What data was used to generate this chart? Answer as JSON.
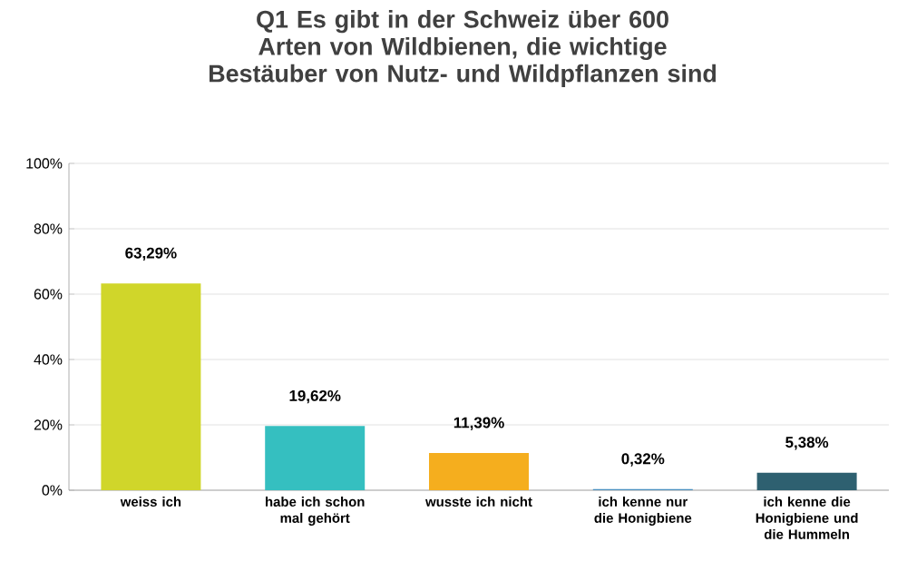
{
  "chart_data": {
    "type": "bar",
    "title": "Q1 Es gibt in der Schweiz über 600 Arten von Wildbienen, die wichtige Bestäuber von Nutz- und Wildpflanzen sind",
    "categories": [
      "weiss ich",
      "habe ich schon mal gehört",
      "wusste ich nicht",
      "ich kenne nur die Honigbiene",
      "ich kenne die Honigbiene und die Hummeln"
    ],
    "values": [
      63.29,
      19.62,
      11.39,
      0.32,
      5.38
    ],
    "value_labels": [
      "63,29%",
      "19,62%",
      "11,39%",
      "0,32%",
      "5,38%"
    ],
    "colors": [
      "#d0d62a",
      "#35bfc0",
      "#f5ae1e",
      "#4a90c0",
      "#2e6070"
    ],
    "ylim": [
      0,
      100
    ],
    "yticks": [
      {
        "value": 0,
        "label": "0%"
      },
      {
        "value": 20,
        "label": "20%"
      },
      {
        "value": 40,
        "label": "40%"
      },
      {
        "value": 60,
        "label": "60%"
      },
      {
        "value": 80,
        "label": "80%"
      },
      {
        "value": 100,
        "label": "100%"
      }
    ],
    "grid": "y"
  }
}
